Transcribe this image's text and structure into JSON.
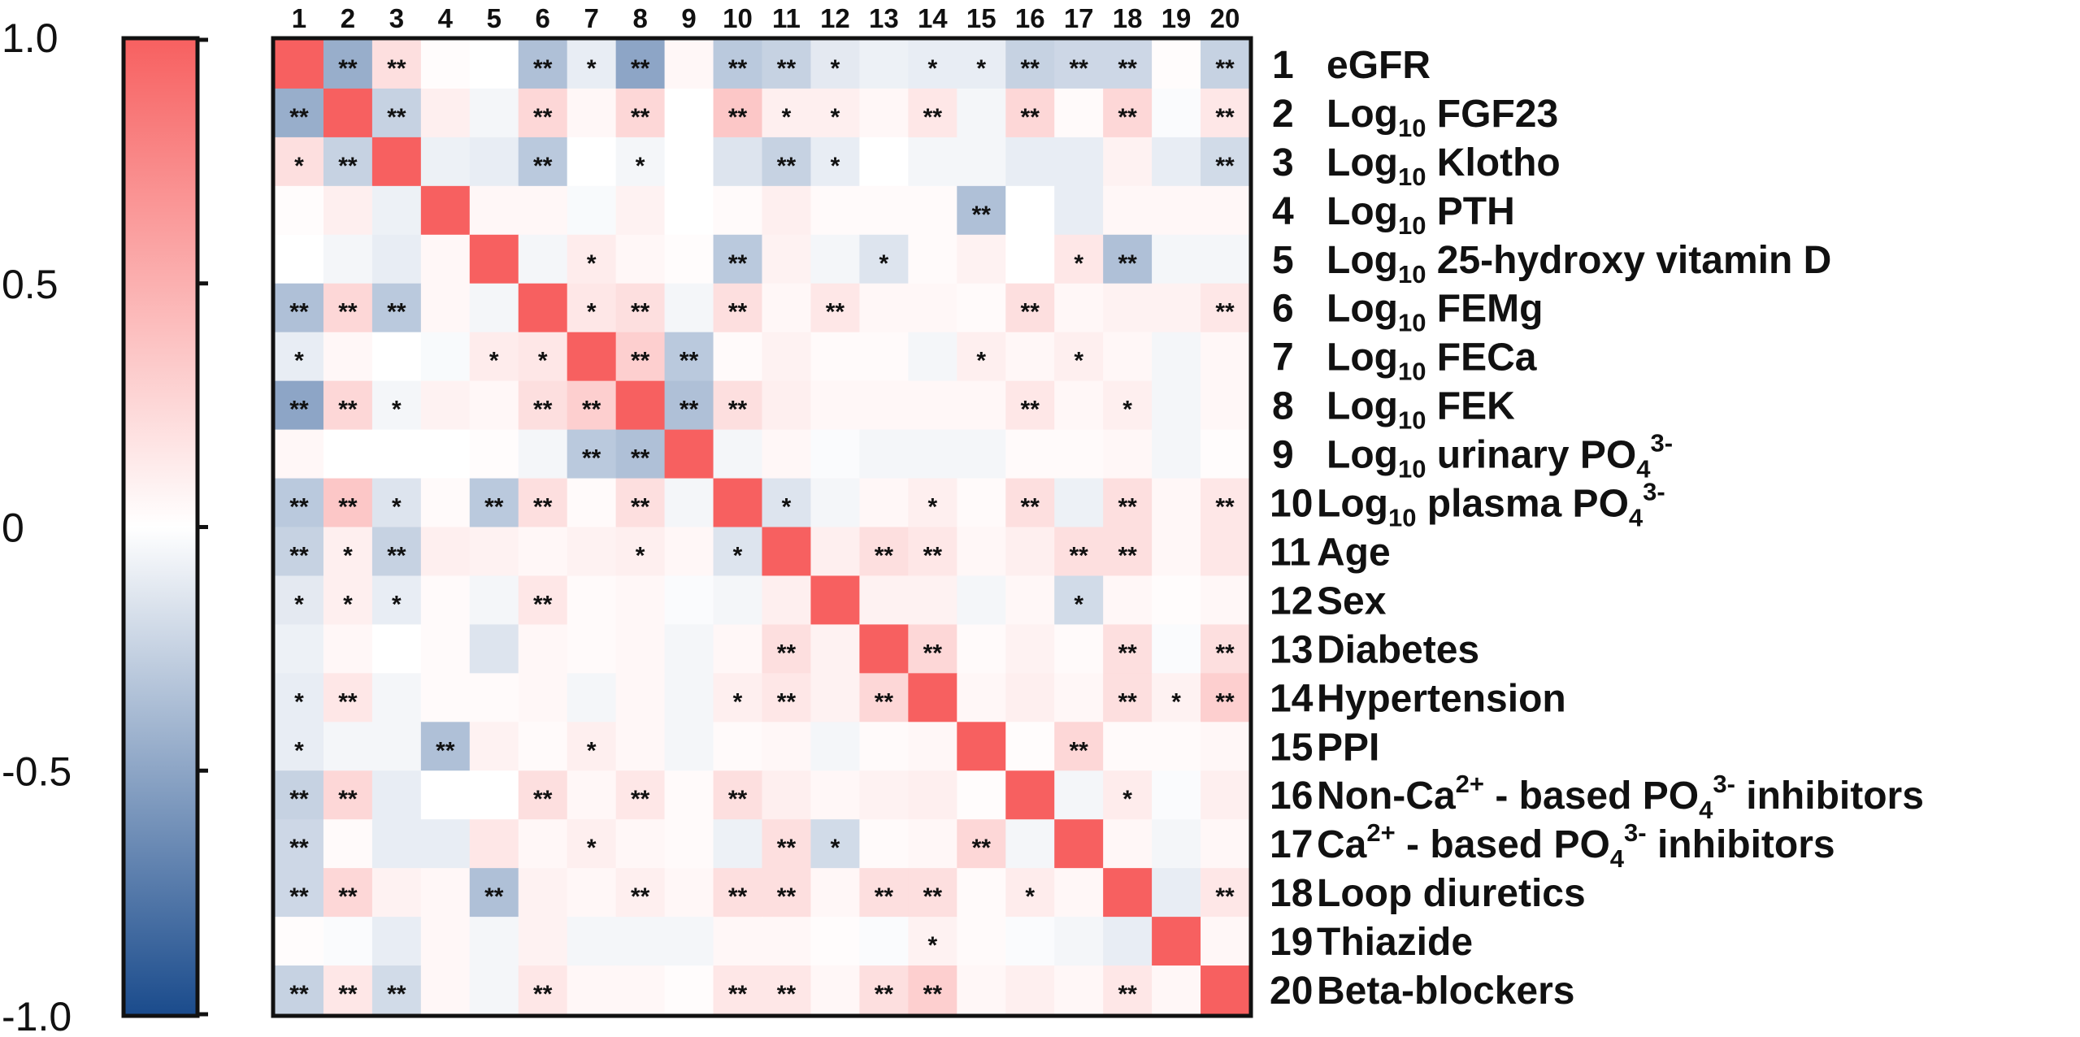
{
  "chart_data": {
    "type": "heatmap",
    "title": "",
    "xlabel": "",
    "ylabel": "",
    "colorbar": {
      "range": [
        -1.0,
        1.0
      ],
      "ticks": [
        "1.0",
        "0.5",
        "0",
        "-0.5",
        "-1.0"
      ],
      "low_color": "#1a4b8c",
      "mid_color": "#ffffff",
      "high_color": "#f76060"
    },
    "columns": [
      "1",
      "2",
      "3",
      "4",
      "5",
      "6",
      "7",
      "8",
      "9",
      "10",
      "11",
      "12",
      "13",
      "14",
      "15",
      "16",
      "17",
      "18",
      "19",
      "20"
    ],
    "rows": [
      {
        "num": "1",
        "parts": [
          {
            "t": "eGFR"
          }
        ]
      },
      {
        "num": "2",
        "parts": [
          {
            "t": "Log"
          },
          {
            "t": "10",
            "s": "sub"
          },
          {
            "t": " FGF23"
          }
        ]
      },
      {
        "num": "3",
        "parts": [
          {
            "t": "Log"
          },
          {
            "t": "10",
            "s": "sub"
          },
          {
            "t": " Klotho"
          }
        ]
      },
      {
        "num": "4",
        "parts": [
          {
            "t": "Log"
          },
          {
            "t": "10",
            "s": "sub"
          },
          {
            "t": " PTH"
          }
        ]
      },
      {
        "num": "5",
        "parts": [
          {
            "t": "Log"
          },
          {
            "t": "10",
            "s": "sub"
          },
          {
            "t": " 25-hydroxy vitamin D"
          }
        ]
      },
      {
        "num": "6",
        "parts": [
          {
            "t": "Log"
          },
          {
            "t": "10",
            "s": "sub"
          },
          {
            "t": " FEMg"
          }
        ]
      },
      {
        "num": "7",
        "parts": [
          {
            "t": "Log"
          },
          {
            "t": "10",
            "s": "sub"
          },
          {
            "t": " FECa"
          }
        ]
      },
      {
        "num": "8",
        "parts": [
          {
            "t": "Log"
          },
          {
            "t": "10",
            "s": "sub"
          },
          {
            "t": " FEK"
          }
        ]
      },
      {
        "num": "9",
        "parts": [
          {
            "t": "Log"
          },
          {
            "t": "10",
            "s": "sub"
          },
          {
            "t": " urinary PO"
          },
          {
            "t": "4",
            "s": "sub"
          },
          {
            "t": "3-",
            "s": "sup"
          }
        ]
      },
      {
        "num": "10",
        "parts": [
          {
            "t": "Log"
          },
          {
            "t": "10",
            "s": "sub"
          },
          {
            "t": " plasma PO"
          },
          {
            "t": "4",
            "s": "sub"
          },
          {
            "t": "3-",
            "s": "sup"
          }
        ]
      },
      {
        "num": "11",
        "parts": [
          {
            "t": "Age"
          }
        ]
      },
      {
        "num": "12",
        "parts": [
          {
            "t": "Sex"
          }
        ]
      },
      {
        "num": "13",
        "parts": [
          {
            "t": "Diabetes"
          }
        ]
      },
      {
        "num": "14",
        "parts": [
          {
            "t": "Hypertension"
          }
        ]
      },
      {
        "num": "15",
        "parts": [
          {
            "t": "PPI"
          }
        ]
      },
      {
        "num": "16",
        "parts": [
          {
            "t": "Non-Ca"
          },
          {
            "t": "2+",
            "s": "sup"
          },
          {
            "t": " - based PO"
          },
          {
            "t": "4",
            "s": "sub"
          },
          {
            "t": "3-",
            "s": "sup"
          },
          {
            "t": " inhibitors"
          }
        ]
      },
      {
        "num": "17",
        "parts": [
          {
            "t": "Ca"
          },
          {
            "t": "2+",
            "s": "sup"
          },
          {
            "t": " - based PO"
          },
          {
            "t": "4",
            "s": "sub"
          },
          {
            "t": "3-",
            "s": "sup"
          },
          {
            "t": " inhibitors"
          }
        ]
      },
      {
        "num": "18",
        "parts": [
          {
            "t": "Loop diuretics"
          }
        ]
      },
      {
        "num": "19",
        "parts": [
          {
            "t": "Thiazide"
          }
        ]
      },
      {
        "num": "20",
        "parts": [
          {
            "t": "Beta-blockers"
          }
        ]
      }
    ],
    "values": [
      [
        1.0,
        -0.45,
        0.2,
        0.02,
        0.0,
        -0.35,
        -0.1,
        -0.5,
        0.05,
        -0.3,
        -0.25,
        -0.12,
        -0.08,
        -0.1,
        -0.1,
        -0.25,
        -0.22,
        -0.22,
        0.02,
        -0.25
      ],
      [
        -0.45,
        1.0,
        -0.25,
        0.1,
        -0.05,
        0.25,
        0.05,
        0.25,
        0.0,
        0.35,
        0.1,
        0.1,
        0.05,
        0.15,
        -0.05,
        0.25,
        0.03,
        0.25,
        -0.02,
        0.15
      ],
      [
        0.2,
        -0.25,
        1.0,
        -0.08,
        -0.1,
        -0.3,
        0.0,
        -0.05,
        0.0,
        -0.15,
        -0.25,
        -0.1,
        0.0,
        -0.05,
        -0.05,
        -0.1,
        -0.1,
        0.08,
        -0.1,
        -0.2
      ],
      [
        0.02,
        0.1,
        -0.08,
        1.0,
        0.05,
        0.05,
        -0.03,
        0.08,
        0.0,
        0.03,
        0.1,
        0.03,
        0.03,
        0.03,
        -0.35,
        0.0,
        -0.1,
        0.05,
        0.05,
        0.05
      ],
      [
        0.0,
        -0.05,
        -0.1,
        0.05,
        1.0,
        -0.05,
        0.12,
        0.05,
        0.02,
        -0.3,
        0.08,
        -0.05,
        -0.15,
        0.03,
        0.08,
        0.0,
        0.15,
        -0.35,
        -0.05,
        -0.05
      ],
      [
        -0.35,
        0.25,
        -0.3,
        0.05,
        -0.05,
        1.0,
        0.15,
        0.2,
        -0.05,
        0.2,
        0.05,
        0.15,
        0.05,
        0.05,
        0.03,
        0.2,
        0.05,
        0.08,
        0.08,
        0.15
      ],
      [
        -0.1,
        0.05,
        0.0,
        -0.03,
        0.12,
        0.15,
        1.0,
        0.3,
        -0.3,
        0.03,
        0.08,
        0.03,
        0.03,
        -0.05,
        0.1,
        0.05,
        0.1,
        0.05,
        -0.05,
        0.05
      ],
      [
        -0.5,
        0.25,
        -0.05,
        0.08,
        0.05,
        0.2,
        0.3,
        1.0,
        -0.35,
        0.2,
        0.1,
        0.05,
        0.05,
        0.05,
        0.05,
        0.15,
        0.05,
        0.1,
        -0.05,
        0.05
      ],
      [
        0.05,
        0.0,
        0.0,
        0.0,
        0.02,
        -0.05,
        -0.3,
        -0.35,
        1.0,
        -0.05,
        0.05,
        -0.02,
        -0.05,
        -0.05,
        -0.05,
        0.03,
        0.03,
        0.05,
        -0.05,
        0.02
      ],
      [
        -0.3,
        0.35,
        -0.15,
        0.03,
        -0.3,
        0.2,
        0.03,
        0.2,
        -0.05,
        1.0,
        -0.15,
        -0.05,
        0.05,
        0.1,
        0.03,
        0.2,
        -0.08,
        0.2,
        0.05,
        0.15
      ],
      [
        -0.25,
        0.1,
        -0.25,
        0.1,
        0.08,
        0.05,
        0.08,
        0.1,
        0.05,
        -0.15,
        1.0,
        0.1,
        0.2,
        0.15,
        0.05,
        0.1,
        0.2,
        0.2,
        0.05,
        0.15
      ],
      [
        -0.12,
        0.1,
        -0.1,
        0.03,
        -0.05,
        0.15,
        0.03,
        0.05,
        -0.02,
        -0.05,
        0.1,
        1.0,
        0.08,
        0.08,
        -0.05,
        0.05,
        -0.2,
        0.05,
        0.02,
        0.05
      ],
      [
        -0.08,
        0.05,
        0.0,
        0.03,
        -0.15,
        0.05,
        0.03,
        0.05,
        -0.05,
        0.05,
        0.2,
        0.08,
        1.0,
        0.25,
        0.03,
        0.08,
        0.03,
        0.2,
        -0.02,
        0.2
      ],
      [
        -0.1,
        0.15,
        -0.05,
        0.03,
        0.03,
        0.05,
        -0.05,
        0.05,
        -0.05,
        0.1,
        0.15,
        0.08,
        0.25,
        1.0,
        0.05,
        0.1,
        0.05,
        0.2,
        0.08,
        0.3
      ],
      [
        -0.1,
        -0.05,
        -0.05,
        -0.35,
        0.08,
        0.03,
        0.1,
        0.05,
        -0.05,
        0.03,
        0.05,
        -0.05,
        0.03,
        0.05,
        1.0,
        0.02,
        0.25,
        0.03,
        0.03,
        0.05
      ],
      [
        -0.25,
        0.25,
        -0.1,
        0.0,
        0.0,
        0.2,
        0.05,
        0.15,
        0.03,
        0.2,
        0.1,
        0.05,
        0.08,
        0.1,
        0.02,
        1.0,
        -0.05,
        0.12,
        -0.02,
        0.1
      ],
      [
        -0.22,
        0.03,
        -0.1,
        -0.1,
        0.15,
        0.05,
        0.1,
        0.05,
        0.03,
        -0.08,
        0.2,
        -0.2,
        0.03,
        0.05,
        0.25,
        -0.05,
        1.0,
        0.05,
        -0.05,
        0.05
      ],
      [
        -0.22,
        0.25,
        0.08,
        0.05,
        -0.35,
        0.08,
        0.05,
        0.1,
        0.05,
        0.2,
        0.2,
        0.05,
        0.2,
        0.2,
        0.03,
        0.12,
        0.05,
        1.0,
        -0.1,
        0.15
      ],
      [
        0.02,
        -0.02,
        -0.1,
        0.05,
        -0.05,
        0.08,
        -0.05,
        -0.05,
        -0.05,
        0.05,
        0.05,
        0.02,
        -0.02,
        0.08,
        0.03,
        -0.02,
        -0.05,
        -0.1,
        1.0,
        0.05
      ],
      [
        -0.25,
        0.15,
        -0.2,
        0.05,
        -0.05,
        0.15,
        0.05,
        0.05,
        0.02,
        0.15,
        0.15,
        0.05,
        0.2,
        0.3,
        0.05,
        0.1,
        0.05,
        0.15,
        0.05,
        1.0
      ]
    ],
    "significance": [
      [
        "",
        "**",
        "**",
        "",
        "",
        "**",
        "*",
        "**",
        "",
        "**",
        "**",
        "*",
        "",
        "*",
        "*",
        "**",
        "**",
        "**",
        "",
        "**"
      ],
      [
        "**",
        "",
        "**",
        "",
        "",
        "**",
        "",
        "**",
        "",
        "**",
        "*",
        "*",
        "",
        "**",
        "",
        "**",
        "",
        "**",
        "",
        "**"
      ],
      [
        "*",
        "**",
        "",
        "",
        "",
        "**",
        "",
        "*",
        "",
        "",
        "**",
        "*",
        "",
        "",
        "",
        "",
        "",
        "",
        "",
        "**"
      ],
      [
        "",
        "",
        "",
        "",
        "",
        "",
        "",
        "",
        "",
        "",
        "",
        "",
        "",
        "",
        "**",
        "",
        "",
        "",
        "",
        ""
      ],
      [
        "",
        "",
        "",
        "",
        "",
        "",
        "*",
        "",
        "",
        "**",
        "",
        "",
        "*",
        "",
        "",
        "",
        "*",
        "**",
        "",
        ""
      ],
      [
        "**",
        "**",
        "**",
        "",
        "",
        "",
        "*",
        "**",
        "",
        "**",
        "",
        "**",
        "",
        "",
        "",
        "**",
        "",
        "",
        "",
        "**"
      ],
      [
        "*",
        "",
        "",
        "",
        "*",
        "*",
        "",
        "**",
        "**",
        "",
        "",
        "",
        "",
        "",
        "*",
        "",
        "*",
        "",
        "",
        ""
      ],
      [
        "**",
        "**",
        "*",
        "",
        "",
        "**",
        "**",
        "",
        "**",
        "**",
        "",
        "",
        "",
        "",
        "",
        "**",
        "",
        "*",
        "",
        ""
      ],
      [
        "",
        "",
        "",
        "",
        "",
        "",
        "**",
        "**",
        "",
        "",
        "",
        "",
        "",
        "",
        "",
        "",
        "",
        "",
        "",
        ""
      ],
      [
        "**",
        "**",
        "*",
        "",
        "**",
        "**",
        "",
        "**",
        "",
        "",
        "*",
        "",
        "",
        "*",
        "",
        "**",
        "",
        "**",
        "",
        "**"
      ],
      [
        "**",
        "*",
        "**",
        "",
        "",
        "",
        "",
        "*",
        "",
        "*",
        "",
        "",
        "**",
        "**",
        "",
        "",
        "**",
        "**",
        "",
        ""
      ],
      [
        "*",
        "*",
        "*",
        "",
        "",
        "**",
        "",
        "",
        "",
        "",
        "",
        "",
        "",
        "",
        "",
        "",
        "*",
        "",
        "",
        ""
      ],
      [
        "",
        "",
        "",
        "",
        "",
        "",
        "",
        "",
        "",
        "",
        "**",
        "",
        "",
        "**",
        "",
        "",
        "",
        "**",
        "",
        "**"
      ],
      [
        "*",
        "**",
        "",
        "",
        "",
        "",
        "",
        "",
        "",
        "*",
        "**",
        "",
        "**",
        "",
        "",
        "",
        "",
        "**",
        "*",
        "**"
      ],
      [
        "*",
        "",
        "",
        "**",
        "",
        "",
        "*",
        "",
        "",
        "",
        "",
        "",
        "",
        "",
        "",
        "",
        "**",
        "",
        "",
        ""
      ],
      [
        "**",
        "**",
        "",
        "",
        "",
        "**",
        "",
        "**",
        "",
        "**",
        "",
        "",
        "",
        "",
        "",
        "",
        "",
        "*",
        "",
        ""
      ],
      [
        "**",
        "",
        "",
        "",
        "",
        "",
        "*",
        "",
        "",
        "",
        "**",
        "*",
        "",
        "",
        "**",
        "",
        "",
        "",
        "",
        ""
      ],
      [
        "**",
        "**",
        "",
        "",
        "**",
        "",
        "",
        "**",
        "",
        "**",
        "**",
        "",
        "**",
        "**",
        "",
        "*",
        "",
        "",
        "",
        "**"
      ],
      [
        "",
        "",
        "",
        "",
        "",
        "",
        "",
        "",
        "",
        "",
        "",
        "",
        "",
        "*",
        "",
        "",
        "",
        "",
        "",
        ""
      ],
      [
        "**",
        "**",
        "**",
        "",
        "",
        "**",
        "",
        "",
        "",
        "**",
        "**",
        "",
        "**",
        "**",
        "",
        "",
        "",
        "**",
        "",
        ""
      ]
    ]
  }
}
